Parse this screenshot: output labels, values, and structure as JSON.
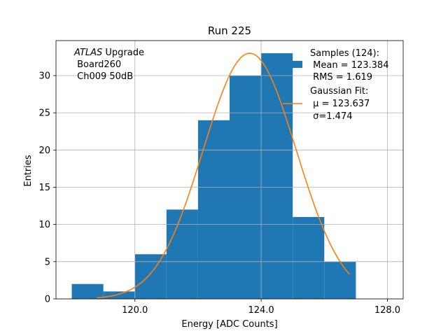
{
  "chart_data": {
    "type": "bar",
    "title": "Run 225",
    "xlabel": "Energy [ADC Counts]",
    "ylabel": "Entries",
    "xlim": [
      117.5,
      128.5
    ],
    "ylim": [
      0,
      34.7
    ],
    "grid": true,
    "xticks": [
      120.0,
      124.0,
      128.0
    ],
    "xtick_labels": [
      "120.0",
      "124.0",
      "128.0"
    ],
    "yticks": [
      0,
      5,
      10,
      15,
      20,
      25,
      30
    ],
    "ytick_labels": [
      "0",
      "5",
      "10",
      "15",
      "20",
      "25",
      "30"
    ],
    "histogram": {
      "name": "Samples (124)",
      "color": "#1f77b4",
      "bin_edges": [
        118,
        119,
        120,
        121,
        122,
        123,
        124,
        125,
        126,
        127
      ],
      "counts": [
        2,
        1,
        6,
        12,
        24,
        30,
        33,
        11,
        5
      ]
    },
    "gaussian_fit": {
      "name": "Gaussian Fit",
      "color": "#ff7f0e",
      "mu": 123.637,
      "sigma": 1.474,
      "amplitude": 33.0,
      "x_range": [
        118.8,
        126.8
      ]
    },
    "annotation": {
      "line1_italic": "ATLAS",
      "line1_rest": " Upgrade",
      "line2": " Board260",
      "line3": " Ch009 50dB"
    },
    "legend": {
      "placement": "top-right",
      "samples_label": "Samples (124):",
      "samples_mean": " Mean = 123.384",
      "samples_rms": " RMS = 1.619",
      "fit_label": "Gaussian Fit:",
      "fit_mu": " μ = 123.637",
      "fit_sigma": " σ=1.474"
    }
  }
}
